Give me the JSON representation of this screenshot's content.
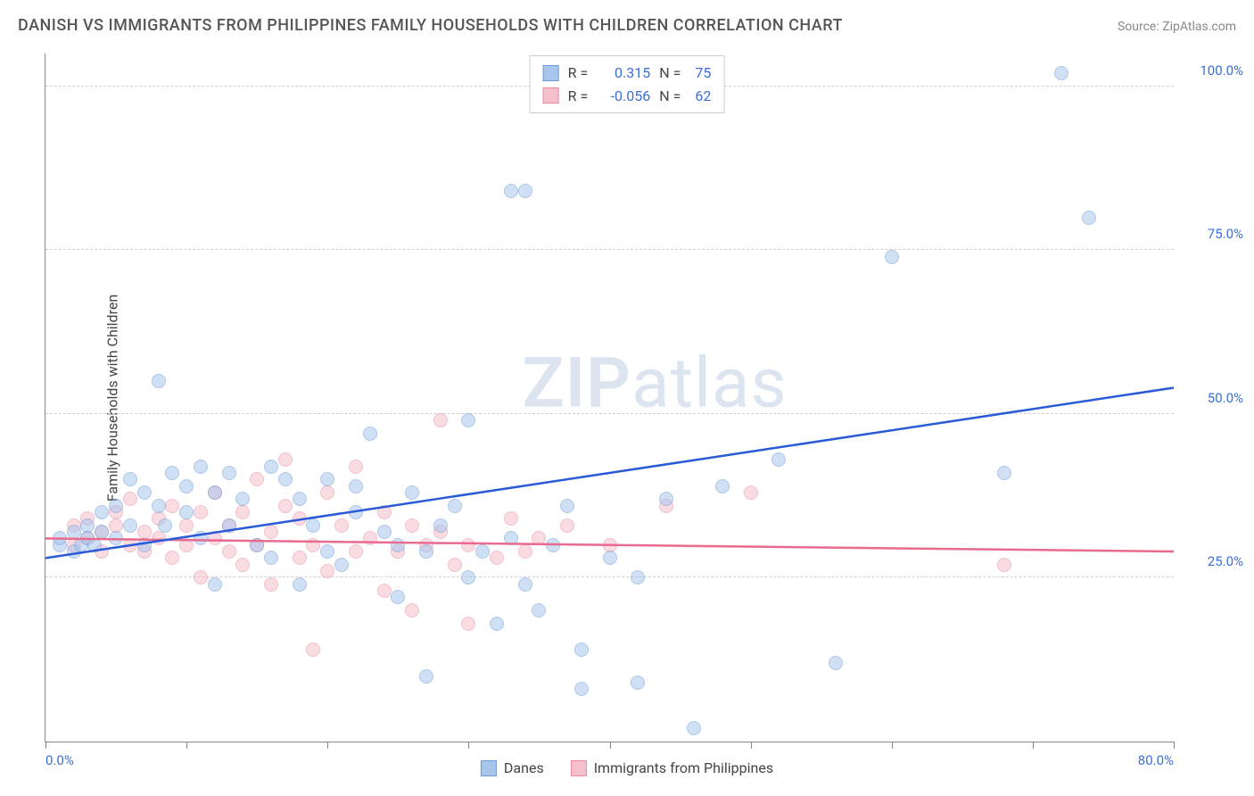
{
  "title": "DANISH VS IMMIGRANTS FROM PHILIPPINES FAMILY HOUSEHOLDS WITH CHILDREN CORRELATION CHART",
  "source": "Source: ZipAtlas.com",
  "ylabel": "Family Households with Children",
  "watermark_zip": "ZIP",
  "watermark_atlas": "atlas",
  "chart": {
    "type": "scatter",
    "xlim": [
      0,
      80
    ],
    "ylim": [
      0,
      105
    ],
    "xtick_positions": [
      0,
      10,
      20,
      30,
      40,
      50,
      60,
      70,
      80
    ],
    "xtick_labels_shown": {
      "0": "0.0%",
      "80": "80.0%"
    },
    "ytick_positions": [
      25,
      50,
      75,
      100
    ],
    "ytick_labels": [
      "25.0%",
      "50.0%",
      "75.0%",
      "100.0%"
    ],
    "grid_color": "#d0d0d0",
    "axis_color": "#888888",
    "tick_label_color": "#3b6fd6",
    "background_color": "#ffffff",
    "point_radius": 8,
    "point_opacity": 0.55
  },
  "series": {
    "danes": {
      "label": "Danes",
      "color_fill": "#a8c5ec",
      "color_stroke": "#6b9bd8",
      "R": "0.315",
      "N": "75",
      "trend": {
        "x1": 0,
        "y1": 28,
        "x2": 80,
        "y2": 54,
        "color": "#2a5bd7"
      },
      "points": [
        [
          1,
          30
        ],
        [
          1,
          31
        ],
        [
          2,
          29
        ],
        [
          2,
          32
        ],
        [
          2.5,
          30
        ],
        [
          3,
          33
        ],
        [
          3,
          31
        ],
        [
          3.5,
          30
        ],
        [
          4,
          35
        ],
        [
          4,
          32
        ],
        [
          5,
          31
        ],
        [
          5,
          36
        ],
        [
          6,
          40
        ],
        [
          6,
          33
        ],
        [
          7,
          38
        ],
        [
          7,
          30
        ],
        [
          8,
          55
        ],
        [
          8,
          36
        ],
        [
          8.5,
          33
        ],
        [
          9,
          41
        ],
        [
          10,
          39
        ],
        [
          10,
          35
        ],
        [
          11,
          42
        ],
        [
          11,
          31
        ],
        [
          12,
          38
        ],
        [
          12,
          24
        ],
        [
          13,
          33
        ],
        [
          13,
          41
        ],
        [
          14,
          37
        ],
        [
          15,
          30
        ],
        [
          16,
          28
        ],
        [
          16,
          42
        ],
        [
          17,
          40
        ],
        [
          18,
          24
        ],
        [
          18,
          37
        ],
        [
          19,
          33
        ],
        [
          20,
          29
        ],
        [
          20,
          40
        ],
        [
          21,
          27
        ],
        [
          22,
          35
        ],
        [
          22,
          39
        ],
        [
          23,
          47
        ],
        [
          24,
          32
        ],
        [
          25,
          30
        ],
        [
          25,
          22
        ],
        [
          26,
          38
        ],
        [
          27,
          29
        ],
        [
          27,
          10
        ],
        [
          28,
          33
        ],
        [
          29,
          36
        ],
        [
          30,
          49
        ],
        [
          30,
          25
        ],
        [
          31,
          29
        ],
        [
          32,
          18
        ],
        [
          33,
          31
        ],
        [
          33,
          84
        ],
        [
          34,
          24
        ],
        [
          34,
          84
        ],
        [
          35,
          20
        ],
        [
          36,
          30
        ],
        [
          37,
          36
        ],
        [
          38,
          14
        ],
        [
          38,
          8
        ],
        [
          40,
          28
        ],
        [
          42,
          25
        ],
        [
          42,
          9
        ],
        [
          44,
          37
        ],
        [
          46,
          2
        ],
        [
          48,
          39
        ],
        [
          52,
          43
        ],
        [
          56,
          12
        ],
        [
          60,
          74
        ],
        [
          68,
          41
        ],
        [
          72,
          102
        ],
        [
          74,
          80
        ]
      ]
    },
    "immigrants": {
      "label": "Immigrants from Philippines",
      "color_fill": "#f5c0cb",
      "color_stroke": "#e88ba3",
      "R": "-0.056",
      "N": "62",
      "trend": {
        "x1": 0,
        "y1": 31,
        "x2": 80,
        "y2": 29,
        "color": "#e86b8f"
      },
      "points": [
        [
          2,
          30
        ],
        [
          2,
          33
        ],
        [
          3,
          31
        ],
        [
          3,
          34
        ],
        [
          4,
          29
        ],
        [
          4,
          32
        ],
        [
          5,
          33
        ],
        [
          5,
          35
        ],
        [
          6,
          30
        ],
        [
          6,
          37
        ],
        [
          7,
          32
        ],
        [
          7,
          29
        ],
        [
          8,
          34
        ],
        [
          8,
          31
        ],
        [
          9,
          36
        ],
        [
          9,
          28
        ],
        [
          10,
          33
        ],
        [
          10,
          30
        ],
        [
          11,
          35
        ],
        [
          11,
          25
        ],
        [
          12,
          31
        ],
        [
          12,
          38
        ],
        [
          13,
          29
        ],
        [
          13,
          33
        ],
        [
          14,
          27
        ],
        [
          14,
          35
        ],
        [
          15,
          40
        ],
        [
          15,
          30
        ],
        [
          16,
          32
        ],
        [
          16,
          24
        ],
        [
          17,
          36
        ],
        [
          17,
          43
        ],
        [
          18,
          28
        ],
        [
          18,
          34
        ],
        [
          19,
          30
        ],
        [
          19,
          14
        ],
        [
          20,
          38
        ],
        [
          20,
          26
        ],
        [
          21,
          33
        ],
        [
          22,
          29
        ],
        [
          22,
          42
        ],
        [
          23,
          31
        ],
        [
          24,
          35
        ],
        [
          24,
          23
        ],
        [
          25,
          29
        ],
        [
          26,
          33
        ],
        [
          26,
          20
        ],
        [
          27,
          30
        ],
        [
          28,
          32
        ],
        [
          28,
          49
        ],
        [
          29,
          27
        ],
        [
          30,
          30
        ],
        [
          30,
          18
        ],
        [
          32,
          28
        ],
        [
          33,
          34
        ],
        [
          34,
          29
        ],
        [
          35,
          31
        ],
        [
          37,
          33
        ],
        [
          40,
          30
        ],
        [
          44,
          36
        ],
        [
          50,
          38
        ],
        [
          68,
          27
        ]
      ]
    }
  },
  "legend_stats": {
    "r_label": "R =",
    "n_label": "N ="
  }
}
